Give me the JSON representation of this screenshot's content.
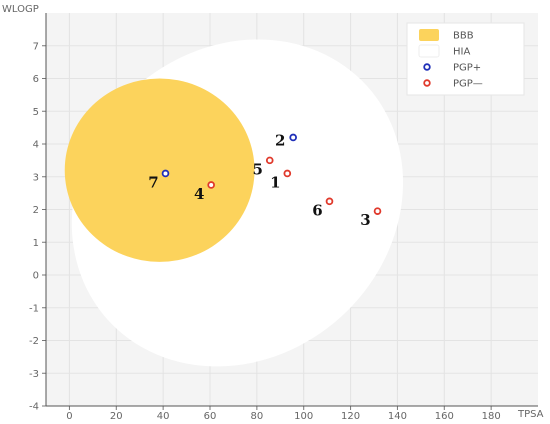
{
  "chart_data": {
    "type": "scatter",
    "xlabel": "TPSA",
    "ylabel": "WLOGP",
    "xlim": [
      -10,
      200
    ],
    "ylim": [
      -4,
      8
    ],
    "x_ticks": [
      "0",
      "20",
      "40",
      "60",
      "80",
      "100",
      "120",
      "140",
      "160",
      "180"
    ],
    "y_ticks": [
      "7",
      "6",
      "5",
      "4",
      "3",
      "2",
      "1",
      "0",
      "-1",
      "-2",
      "-3",
      "-4"
    ],
    "grid": true,
    "legend_position": "top-right",
    "legend": [
      {
        "name": "BBB",
        "symbol": "yolk",
        "color": "#fcd35c"
      },
      {
        "name": "HIA",
        "symbol": "white",
        "color": "#ffffff"
      },
      {
        "name": "PGP+",
        "symbol": "circle",
        "color": "#1f2fb8"
      },
      {
        "name": "PGP—",
        "symbol": "circle",
        "color": "#e0392b"
      }
    ],
    "regions": [
      {
        "name": "HIA",
        "color": "#ffffff",
        "ellipse": {
          "cx": 71.7,
          "cy": 2.2,
          "rx": 74.5,
          "ry": 4.7,
          "angle_deg": -42
        }
      },
      {
        "name": "BBB",
        "color": "#fcd35c",
        "ellipse": {
          "cx": 38.5,
          "cy": 3.2,
          "rx": 40.5,
          "ry": 2.8,
          "angle_deg": 0
        }
      }
    ],
    "series": [
      {
        "name": "PGP+",
        "color": "#1f2fb8",
        "points": [
          {
            "label": "2",
            "x": 95.5,
            "y": 4.2
          },
          {
            "label": "7",
            "x": 41,
            "y": 3.1
          }
        ]
      },
      {
        "name": "PGP—",
        "color": "#e0392b",
        "points": [
          {
            "label": "1",
            "x": 93,
            "y": 3.1
          },
          {
            "label": "5",
            "x": 85.5,
            "y": 3.5
          },
          {
            "label": "4",
            "x": 60.5,
            "y": 2.75
          },
          {
            "label": "6",
            "x": 111,
            "y": 2.25
          },
          {
            "label": "3",
            "x": 131.5,
            "y": 1.95
          }
        ]
      }
    ],
    "label_placement": {
      "1": "below-left",
      "2": "left",
      "3": "below-left",
      "4": "below-left",
      "5": "below-left",
      "6": "below-left",
      "7": "below-left"
    }
  }
}
